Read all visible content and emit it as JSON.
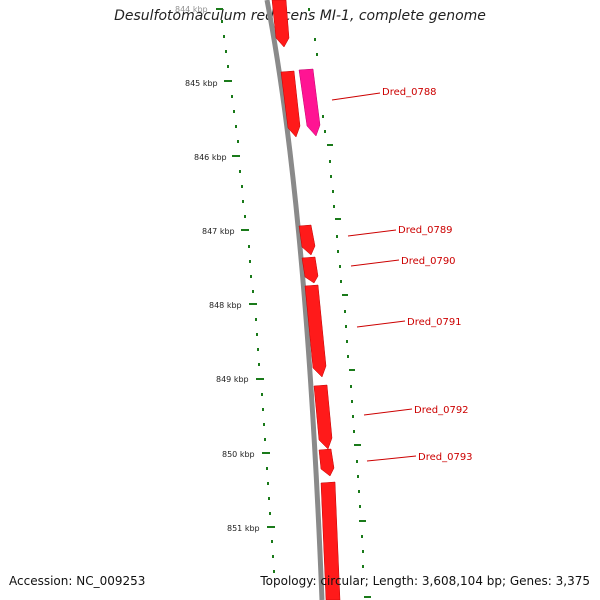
{
  "title": "Desulfotomaculum reducens MI-1, complete genome",
  "accession": "Accession: NC_009253",
  "stats": "Topology: circular; Length: 3,608,104 bp; Genes: 3,375",
  "ticks": [
    "844 kbp",
    "845 kbp",
    "846 kbp",
    "847 kbp",
    "848 kbp",
    "849 kbp",
    "850 kbp",
    "851 kbp"
  ],
  "genes": [
    "Dred_0788",
    "Dred_0789",
    "Dred_0790",
    "Dred_0791",
    "Dred_0792",
    "Dred_0793"
  ],
  "colors": {
    "gene": "#ff0000",
    "gene_alt": "#ff1493",
    "backbone": "#808080",
    "ticks": "#1a7a1a",
    "label": "#cc0000"
  }
}
